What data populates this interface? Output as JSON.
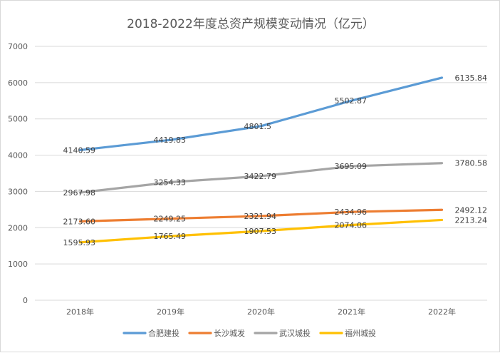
{
  "chart_data": {
    "type": "line",
    "title": "2018-2022年度总资产规模变动情况（亿元）",
    "xlabel": "",
    "ylabel": "",
    "categories": [
      "2018年",
      "2019年",
      "2020年",
      "2021年",
      "2022年"
    ],
    "ylim": [
      0,
      7000
    ],
    "yticks": [
      0,
      1000,
      2000,
      3000,
      4000,
      5000,
      6000,
      7000
    ],
    "grid": true,
    "legend_position": "bottom",
    "series": [
      {
        "name": "合肥建投",
        "color": "#5b9bd5",
        "values": [
          4140.59,
          4419.83,
          4801.5,
          5502.87,
          6135.84
        ],
        "labels": [
          "4140.59",
          "4419.83",
          "4801.5",
          "5502.87",
          "6135.84"
        ]
      },
      {
        "name": "长沙城发",
        "color": "#ed7d31",
        "values": [
          2173.6,
          2249.25,
          2321.94,
          2434.96,
          2492.12
        ],
        "labels": [
          "2173.60",
          "2249.25",
          "2321.94",
          "2434.96",
          "2492.12"
        ]
      },
      {
        "name": "武汉城投",
        "color": "#a5a5a5",
        "values": [
          2967.98,
          3254.33,
          3422.79,
          3695.09,
          3780.58
        ],
        "labels": [
          "2967.98",
          "3254.33",
          "3422.79",
          "3695.09",
          "3780.58"
        ]
      },
      {
        "name": "福州城投",
        "color": "#ffc000",
        "values": [
          1595.93,
          1765.49,
          1907.53,
          2074.06,
          2213.24
        ],
        "labels": [
          "1595.93",
          "1765.49",
          "1907.53",
          "2074.06",
          "2213.24"
        ]
      }
    ]
  }
}
